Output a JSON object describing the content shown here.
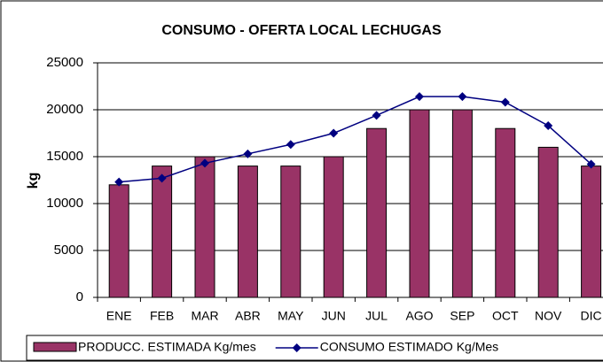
{
  "chart_data": {
    "type": "bar",
    "title": "CONSUMO - OFERTA LOCAL LECHUGAS",
    "y_label": "kg",
    "categories": [
      "ENE",
      "FEB",
      "MAR",
      "ABR",
      "MAY",
      "JUN",
      "JUL",
      "AGO",
      "SEP",
      "OCT",
      "NOV",
      "DIC"
    ],
    "series": [
      {
        "name": "PRODUCC. ESTIMADA Kg/mes",
        "type": "bar",
        "color": "#993366",
        "values": [
          12000,
          14000,
          15000,
          14000,
          14000,
          15000,
          18000,
          20000,
          20000,
          18000,
          16000,
          14000
        ]
      },
      {
        "name": "CONSUMO ESTIMADO Kg/Mes",
        "type": "line",
        "color": "#000080",
        "values": [
          12300,
          12700,
          14300,
          15300,
          16300,
          17500,
          19400,
          21400,
          21400,
          20800,
          18300,
          14200
        ]
      }
    ],
    "ylim": [
      0,
      25000
    ],
    "yticks": [
      0,
      5000,
      10000,
      15000,
      20000,
      25000
    ],
    "grid": true,
    "legend": "bottom"
  }
}
